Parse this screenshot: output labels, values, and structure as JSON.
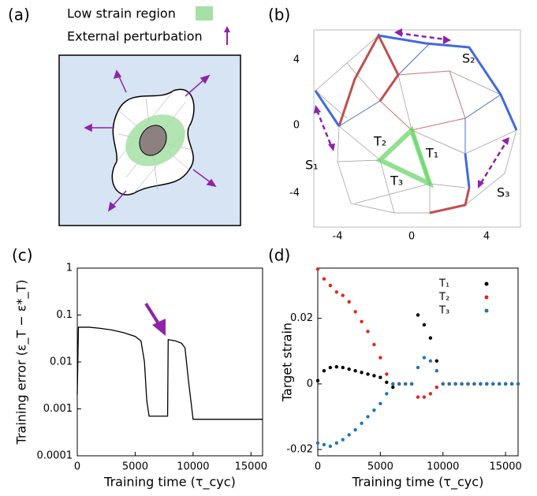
{
  "panel_a": {
    "label": "(a)",
    "legend_low_strain": "Low strain region",
    "legend_perturbation": "External perturbation"
  },
  "panel_b": {
    "label": "(b)",
    "xtick_labels": [
      "-4",
      "0",
      "4"
    ],
    "ytick_labels": [
      "4",
      "0",
      "-4"
    ],
    "labels": {
      "s1": "S₁",
      "s2": "S₂",
      "s3": "S₃",
      "t1": "T₁",
      "t2": "T₂",
      "t3": "T₃"
    }
  },
  "chart_data": [
    {
      "type": "line",
      "panel_label": "(c)",
      "x_label": "Training time (τ_cyc)",
      "y_label": "Training error (ε_T − ε*_T)",
      "log_y": true,
      "color": "#000000",
      "x": [
        0,
        100,
        1000,
        2000,
        3000,
        4000,
        5000,
        5500,
        5800,
        6000,
        6200,
        7800,
        7850,
        8500,
        9000,
        9300,
        9600,
        10000,
        16000
      ],
      "y": [
        0.002,
        0.055,
        0.055,
        0.052,
        0.048,
        0.042,
        0.035,
        0.028,
        0.01,
        0.0015,
        0.0007,
        0.0007,
        0.03,
        0.028,
        0.025,
        0.02,
        0.004,
        0.0006,
        0.0006
      ],
      "xlim": [
        0,
        16000
      ],
      "ylim": [
        0.0001,
        1
      ],
      "xticks": [
        0,
        5000,
        10000,
        15000
      ],
      "yticks": [
        0.0001,
        0.001,
        0.01,
        0.1,
        1
      ]
    },
    {
      "type": "scatter",
      "panel_label": "(d)",
      "x_label": "Training time (τ_cyc)",
      "y_label": "Target strain",
      "x": [
        0,
        500,
        1000,
        1500,
        2000,
        2500,
        3000,
        3500,
        4000,
        4500,
        5000,
        5500,
        6000,
        6500,
        7000,
        7500,
        8000,
        8500,
        9000,
        9500,
        10000,
        10500,
        11000,
        11500,
        12000,
        12500,
        13000,
        13500,
        14000,
        14500,
        15000,
        15500,
        16000
      ],
      "series": [
        {
          "name": "T₁",
          "color": "#000000",
          "values": [
            0.001,
            0.004,
            0.005,
            0.0052,
            0.005,
            0.0045,
            0.004,
            0.0035,
            0.003,
            0.0025,
            0.002,
            0.0005,
            -0.001,
            0,
            0,
            0,
            0.021,
            0.018,
            0.014,
            0.007,
            0,
            0,
            0,
            0,
            0,
            0,
            0,
            0,
            0,
            0,
            0,
            0,
            0
          ]
        },
        {
          "name": "T₂",
          "color": "#e0261b",
          "values": [
            0.035,
            0.032,
            0.03,
            0.028,
            0.027,
            0.025,
            0.022,
            0.019,
            0.016,
            0.012,
            0.008,
            0.003,
            0,
            0,
            0,
            0,
            -0.004,
            -0.004,
            -0.003,
            -0.001,
            0,
            0,
            0,
            0,
            0,
            0,
            0,
            0,
            0,
            0,
            0,
            0,
            0
          ]
        },
        {
          "name": "T₃",
          "color": "#1f77b4",
          "values": [
            -0.018,
            -0.0185,
            -0.019,
            -0.018,
            -0.017,
            -0.0155,
            -0.014,
            -0.012,
            -0.01,
            -0.008,
            -0.006,
            -0.003,
            0,
            0,
            0,
            0,
            0.005,
            0.008,
            0.007,
            0.004,
            0,
            0,
            0,
            0,
            0,
            0,
            0,
            0,
            0,
            0,
            0,
            0,
            0
          ]
        }
      ],
      "xlim": [
        0,
        16000
      ],
      "ylim": [
        -0.0219,
        0.0353
      ],
      "xticks": [
        0,
        5000,
        10000,
        15000
      ],
      "yticks": [
        -0.02,
        0,
        0.02
      ],
      "legend": "top-right"
    }
  ]
}
